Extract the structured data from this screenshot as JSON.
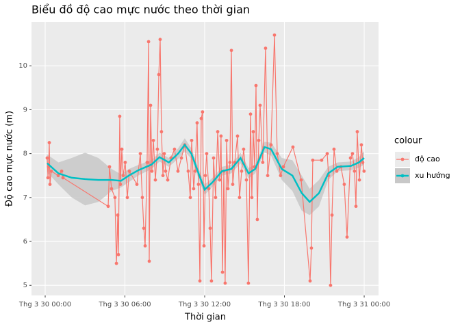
{
  "chart_data": {
    "type": "line",
    "title": "Biểu đồ độ cao mực nước theo thời gian",
    "x_label": "Thời gian",
    "y_label": "Độ cao mực nước (m)",
    "legend_title": "colour",
    "legend_position": "right",
    "grid": true,
    "xlim": [
      -1.03,
      25.08
    ],
    "xticks": [
      {
        "value": 0,
        "label": "Thg 3 30 00:00"
      },
      {
        "value": 6,
        "label": "Thg 3 30 06:00"
      },
      {
        "value": 12,
        "label": "Thg 3 30 12:00"
      },
      {
        "value": 18,
        "label": "Thg 3 30 18:00"
      },
      {
        "value": 24,
        "label": "Thg 3 31 00:00"
      }
    ],
    "ylim": [
      4.77,
      11.0
    ],
    "yticks": [
      5,
      6,
      7,
      8,
      9,
      10
    ],
    "series": [
      {
        "name": "độ cao",
        "color": "#F8766D",
        "x": [
          0.15,
          0.21,
          0.26,
          0.31,
          0.36,
          0.46,
          0.98,
          1.24,
          1.34,
          4.74,
          4.84,
          4.99,
          5.25,
          5.36,
          5.46,
          5.51,
          5.61,
          5.66,
          5.77,
          5.87,
          6.02,
          6.18,
          6.33,
          6.9,
          7.16,
          7.31,
          7.42,
          7.52,
          7.67,
          7.78,
          7.83,
          7.93,
          8.03,
          8.14,
          8.29,
          8.44,
          8.55,
          8.65,
          8.75,
          8.86,
          8.96,
          9.06,
          9.22,
          9.47,
          9.73,
          9.99,
          10.25,
          10.5,
          10.76,
          10.92,
          11.02,
          11.17,
          11.28,
          11.43,
          11.53,
          11.64,
          11.74,
          11.84,
          11.95,
          12.05,
          12.15,
          12.31,
          12.41,
          12.51,
          12.67,
          12.82,
          12.98,
          13.13,
          13.23,
          13.34,
          13.44,
          13.54,
          13.65,
          13.75,
          13.9,
          14.01,
          14.11,
          14.26,
          14.47,
          14.62,
          14.78,
          14.93,
          15.14,
          15.29,
          15.45,
          15.55,
          15.65,
          15.76,
          15.86,
          15.96,
          16.07,
          16.17,
          16.37,
          16.58,
          16.74,
          16.99,
          17.25,
          17.46,
          17.71,
          17.92,
          18.64,
          19.26,
          19.93,
          20.03,
          20.13,
          20.8,
          21.22,
          21.32,
          21.47,
          21.58,
          21.73,
          21.94,
          22.25,
          22.5,
          22.71,
          22.97,
          23.12,
          23.27,
          23.38,
          23.48,
          23.64,
          23.79,
          23.89,
          23.99
        ],
        "values": [
          7.9,
          7.45,
          7.7,
          8.25,
          7.3,
          7.6,
          7.5,
          7.6,
          7.45,
          6.8,
          7.7,
          7.2,
          7.0,
          5.5,
          6.6,
          5.7,
          8.85,
          7.3,
          8.1,
          7.5,
          7.8,
          7.0,
          7.6,
          7.3,
          8.0,
          7.0,
          6.3,
          5.9,
          7.8,
          10.55,
          5.55,
          9.1,
          7.6,
          8.3,
          7.4,
          8.1,
          9.8,
          10.6,
          8.5,
          7.5,
          8.0,
          7.6,
          7.4,
          7.9,
          8.1,
          7.6,
          7.9,
          8.2,
          7.6,
          7.0,
          8.3,
          7.2,
          7.6,
          8.7,
          7.3,
          5.1,
          8.8,
          8.95,
          5.9,
          7.5,
          8.0,
          7.2,
          6.3,
          5.1,
          7.9,
          7.0,
          8.5,
          7.4,
          8.4,
          5.3,
          7.6,
          5.05,
          8.3,
          7.2,
          7.8,
          10.35,
          7.3,
          7.8,
          8.4,
          7.0,
          7.6,
          8.1,
          7.4,
          5.05,
          8.9,
          7.0,
          8.5,
          7.7,
          9.55,
          6.5,
          8.3,
          9.1,
          7.8,
          10.4,
          7.5,
          8.2,
          10.7,
          8.0,
          7.5,
          7.7,
          8.15,
          7.4,
          5.1,
          5.85,
          7.85,
          7.85,
          8.0,
          7.5,
          5.0,
          6.6,
          8.1,
          7.6,
          7.7,
          7.3,
          6.1,
          7.9,
          8.0,
          7.6,
          6.8,
          8.5,
          7.4,
          8.2,
          7.8,
          7.6
        ]
      },
      {
        "name": "xu hướng",
        "color": "#00BFC4",
        "band_color": "#C8C8C8",
        "x": [
          0.15,
          1,
          2,
          3,
          4,
          5,
          5.7,
          6.3,
          7,
          8,
          8.6,
          9.3,
          10,
          10.5,
          11,
          11.6,
          12,
          12.6,
          13.3,
          14,
          14.7,
          15.3,
          15.8,
          16.5,
          17,
          17.8,
          18.6,
          19.3,
          19.9,
          20.6,
          21.3,
          22,
          23,
          23.6,
          24
        ],
        "values": [
          7.78,
          7.55,
          7.45,
          7.42,
          7.4,
          7.4,
          7.38,
          7.5,
          7.62,
          7.75,
          7.92,
          7.8,
          8.0,
          8.2,
          8.0,
          7.5,
          7.18,
          7.35,
          7.6,
          7.65,
          7.9,
          7.55,
          7.65,
          8.15,
          8.1,
          7.65,
          7.5,
          7.1,
          6.9,
          7.1,
          7.55,
          7.7,
          7.72,
          7.8,
          7.9
        ],
        "upper": [
          7.98,
          7.8,
          7.9,
          8.02,
          7.9,
          7.65,
          7.53,
          7.65,
          7.74,
          7.85,
          8.02,
          7.9,
          8.12,
          8.35,
          8.12,
          7.62,
          7.3,
          7.45,
          7.7,
          7.75,
          8.02,
          7.67,
          7.75,
          8.27,
          8.25,
          7.9,
          7.85,
          7.5,
          7.2,
          7.4,
          7.7,
          7.8,
          7.82,
          7.92,
          8.05
        ],
        "lower": [
          7.58,
          7.3,
          7.0,
          6.82,
          6.9,
          7.15,
          7.23,
          7.35,
          7.5,
          7.65,
          7.82,
          7.7,
          7.88,
          8.05,
          7.88,
          7.38,
          7.06,
          7.25,
          7.5,
          7.55,
          7.78,
          7.43,
          7.55,
          8.03,
          7.95,
          7.4,
          7.15,
          6.7,
          6.6,
          6.8,
          7.4,
          7.6,
          7.62,
          7.68,
          7.75
        ]
      }
    ]
  }
}
